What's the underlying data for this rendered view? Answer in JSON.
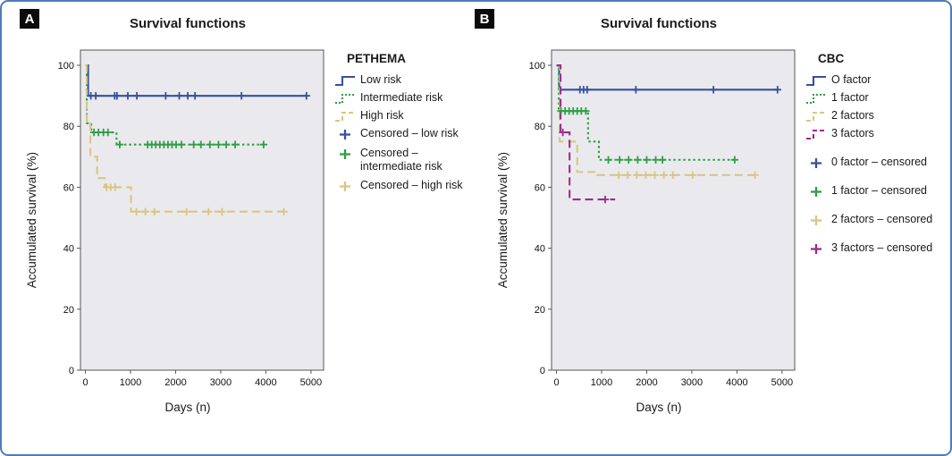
{
  "figure": {
    "border_color": "#4e7cb8",
    "panel_label_bg": "#0b0b0b"
  },
  "chart_data": [
    {
      "type": "line",
      "subtype": "kaplan-meier-step",
      "panel_label": "A",
      "title": "Survival functions",
      "xlabel": "Days (n)",
      "ylabel": "Accumulated survival (%)",
      "x_ticks": [
        0,
        1000,
        2000,
        3000,
        4000,
        5000
      ],
      "y_ticks": [
        0,
        20,
        40,
        60,
        80,
        100
      ],
      "xlim": [
        -110,
        5280
      ],
      "ylim": [
        0,
        105
      ],
      "plot_bg": "#eaeaee",
      "axis_color": "#555555",
      "legend": {
        "title": "PETHEMA",
        "items": [
          {
            "label": "Low risk",
            "marker": "line",
            "series": 0
          },
          {
            "label": "Intermediate risk",
            "marker": "line",
            "series": 1
          },
          {
            "label": "High risk",
            "marker": "line",
            "series": 2
          },
          {
            "label": "Censored – low risk",
            "marker": "plus",
            "series": 0
          },
          {
            "label": "Censored – intermediate risk",
            "marker": "plus",
            "series": 1
          },
          {
            "label": "Censored – high risk",
            "marker": "plus",
            "series": 2
          }
        ]
      },
      "series": [
        {
          "name": "Low risk",
          "color": "#35509e",
          "style": "solid",
          "steps": [
            [
              0,
              100
            ],
            [
              60,
              90
            ]
          ],
          "end": 4900,
          "censored": [
            [
              120,
              90
            ],
            [
              230,
              90
            ],
            [
              650,
              90
            ],
            [
              700,
              90
            ],
            [
              940,
              90
            ],
            [
              1140,
              90
            ],
            [
              1780,
              90
            ],
            [
              2080,
              90
            ],
            [
              2270,
              90
            ],
            [
              2430,
              90
            ],
            [
              3460,
              90
            ],
            [
              4900,
              90
            ]
          ]
        },
        {
          "name": "Intermediate risk",
          "color": "#2f9e45",
          "style": "dotted",
          "steps": [
            [
              0,
              100
            ],
            [
              30,
              81
            ],
            [
              130,
              78
            ],
            [
              690,
              74
            ]
          ],
          "end": 3950,
          "censored": [
            [
              190,
              78
            ],
            [
              290,
              78
            ],
            [
              400,
              78
            ],
            [
              500,
              78
            ],
            [
              760,
              74
            ],
            [
              1380,
              74
            ],
            [
              1470,
              74
            ],
            [
              1560,
              74
            ],
            [
              1650,
              74
            ],
            [
              1740,
              74
            ],
            [
              1830,
              74
            ],
            [
              1920,
              74
            ],
            [
              2010,
              74
            ],
            [
              2130,
              74
            ],
            [
              2400,
              74
            ],
            [
              2560,
              74
            ],
            [
              2760,
              74
            ],
            [
              2950,
              74
            ],
            [
              3120,
              74
            ],
            [
              3320,
              74
            ],
            [
              3950,
              74
            ]
          ]
        },
        {
          "name": "High risk",
          "color": "#d9c584",
          "style": "dashed",
          "steps": [
            [
              0,
              100
            ],
            [
              30,
              81
            ],
            [
              110,
              70
            ],
            [
              260,
              63
            ],
            [
              430,
              60
            ],
            [
              1010,
              52
            ]
          ],
          "end": 4400,
          "censored": [
            [
              470,
              60
            ],
            [
              560,
              60
            ],
            [
              660,
              60
            ],
            [
              1130,
              52
            ],
            [
              1330,
              52
            ],
            [
              1530,
              52
            ],
            [
              2240,
              52
            ],
            [
              2730,
              52
            ],
            [
              3030,
              52
            ],
            [
              4400,
              52
            ]
          ]
        }
      ]
    },
    {
      "type": "line",
      "subtype": "kaplan-meier-step",
      "panel_label": "B",
      "title": "Survival functions",
      "xlabel": "Days (n)",
      "ylabel": "Accumulated survival (%)",
      "x_ticks": [
        0,
        1000,
        2000,
        3000,
        4000,
        5000
      ],
      "y_ticks": [
        0,
        20,
        40,
        60,
        80,
        100
      ],
      "xlim": [
        -110,
        5280
      ],
      "ylim": [
        0,
        105
      ],
      "plot_bg": "#eaeaee",
      "axis_color": "#555555",
      "legend": {
        "title": "CBC",
        "items": [
          {
            "label": "O factor",
            "marker": "line",
            "series": 0
          },
          {
            "label": "1 factor",
            "marker": "line",
            "series": 1
          },
          {
            "label": "2 factors",
            "marker": "line",
            "series": 2
          },
          {
            "label": "3 factors",
            "marker": "line",
            "series": 3
          },
          {
            "label": "0 factor – censored",
            "marker": "plus",
            "series": 0
          },
          {
            "label": "1 factor – censored",
            "marker": "plus",
            "series": 1
          },
          {
            "label": "2 factors – censored",
            "marker": "plus",
            "series": 2
          },
          {
            "label": "3 factors – censored",
            "marker": "plus",
            "series": 3
          }
        ]
      },
      "series": [
        {
          "name": "O factor",
          "color": "#35509e",
          "style": "solid",
          "steps": [
            [
              0,
              100
            ],
            [
              60,
              92
            ]
          ],
          "end": 4900,
          "censored": [
            [
              520,
              92
            ],
            [
              600,
              92
            ],
            [
              680,
              92
            ],
            [
              1760,
              92
            ],
            [
              3480,
              92
            ],
            [
              4900,
              92
            ]
          ]
        },
        {
          "name": "1 factor",
          "color": "#2f9e45",
          "style": "dotted",
          "steps": [
            [
              0,
              100
            ],
            [
              50,
              85
            ],
            [
              700,
              75
            ],
            [
              940,
              69
            ]
          ],
          "end": 3950,
          "censored": [
            [
              100,
              85
            ],
            [
              190,
              85
            ],
            [
              280,
              85
            ],
            [
              370,
              85
            ],
            [
              460,
              85
            ],
            [
              550,
              85
            ],
            [
              650,
              85
            ],
            [
              1150,
              69
            ],
            [
              1400,
              69
            ],
            [
              1600,
              69
            ],
            [
              1800,
              69
            ],
            [
              2000,
              69
            ],
            [
              2200,
              69
            ],
            [
              2350,
              69
            ],
            [
              3950,
              69
            ]
          ]
        },
        {
          "name": "2 factors",
          "color": "#d9c584",
          "style": "dashed",
          "steps": [
            [
              0,
              100
            ],
            [
              70,
              75
            ],
            [
              460,
              65
            ],
            [
              900,
              64
            ]
          ],
          "end": 4400,
          "censored": [
            [
              1380,
              64
            ],
            [
              1580,
              64
            ],
            [
              1780,
              64
            ],
            [
              1980,
              64
            ],
            [
              2180,
              64
            ],
            [
              2380,
              64
            ],
            [
              2580,
              64
            ],
            [
              3020,
              64
            ],
            [
              4400,
              64
            ]
          ]
        },
        {
          "name": "3 factors",
          "color": "#9e2b8c",
          "style": "dashed",
          "steps": [
            [
              0,
              100
            ],
            [
              90,
              78
            ],
            [
              290,
              56
            ]
          ],
          "end": 1300,
          "censored": [
            [
              140,
              78
            ],
            [
              1080,
              56
            ]
          ]
        }
      ]
    }
  ]
}
